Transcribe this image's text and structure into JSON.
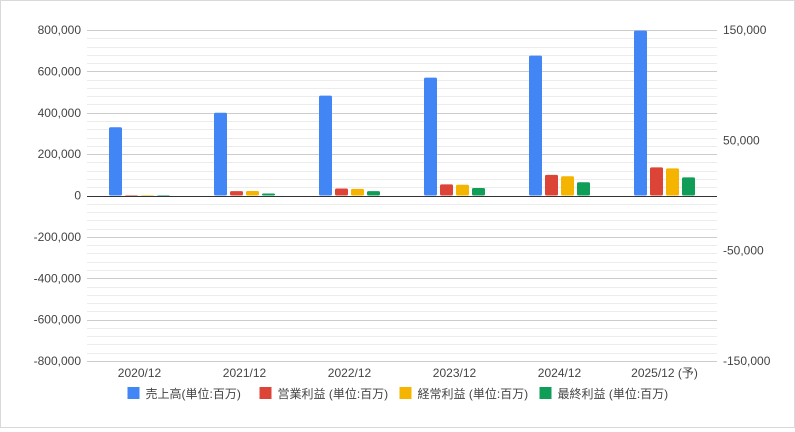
{
  "chart_data": {
    "type": "bar",
    "categories": [
      "2020/12",
      "2021/12",
      "2022/12",
      "2023/12",
      "2024/12",
      "2025/12 (予)"
    ],
    "series": [
      {
        "name": "売上高(単位:百万)",
        "color": "#4285f4",
        "values": [
          330000,
          400000,
          483000,
          570000,
          676000,
          797000
        ]
      },
      {
        "name": "営業利益 (単位:百万)",
        "color": "#db4437",
        "values": [
          -2000,
          21000,
          34000,
          54000,
          100000,
          136000
        ]
      },
      {
        "name": "経常利益 (単位:百万)",
        "color": "#f4b400",
        "values": [
          -3600,
          22000,
          32000,
          52000,
          93000,
          131000
        ]
      },
      {
        "name": "最終利益 (単位:百万)",
        "color": "#0f9d58",
        "values": [
          -7000,
          9500,
          21000,
          36000,
          64000,
          87500
        ]
      }
    ],
    "y_left": {
      "min": -800000,
      "max": 800000,
      "tick_values": [
        800000,
        600000,
        400000,
        200000,
        0,
        -200000,
        -400000,
        -600000,
        -800000
      ],
      "tick_labels": [
        "800,000",
        "600,000",
        "400,000",
        "200,000",
        "0",
        "-200,000",
        "-400,000",
        "-600,000",
        "-800,000"
      ]
    },
    "y_right": {
      "min": -150000,
      "max": 150000,
      "tick_values": [
        150000,
        50000,
        -50000,
        -150000
      ],
      "tick_labels": [
        "150,000",
        "50,000",
        "-50,000",
        "-150,000"
      ]
    },
    "grid": true,
    "legend_position": "bottom"
  }
}
